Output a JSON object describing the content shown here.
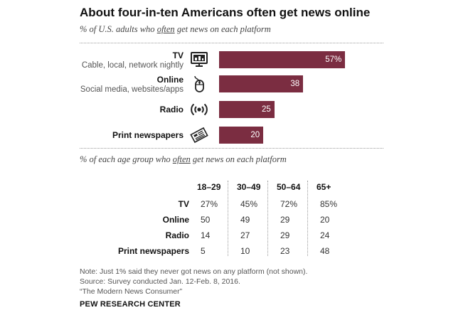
{
  "title": "About four-in-ten Americans often get news online",
  "subtitle1": {
    "pre": "% of U.S. adults who ",
    "emph": "often",
    "post": " get news on each platform"
  },
  "subtitle2": {
    "pre": "% of each age group who ",
    "emph": "often",
    "post": " get news on each platform"
  },
  "chart_data": [
    {
      "type": "bar",
      "orientation": "horizontal",
      "title": "About four-in-ten Americans often get news online",
      "categories": [
        "TV",
        "Online",
        "Radio",
        "Print newspapers"
      ],
      "category_descriptions": [
        "Cable, local, network nightly",
        "Social media, websites/apps",
        "",
        ""
      ],
      "category_icons": [
        "tv-icon",
        "computer-mouse-icon",
        "radio-icon",
        "newspaper-icon"
      ],
      "values": [
        57,
        38,
        25,
        20
      ],
      "value_labels": [
        "57%",
        "38",
        "25",
        "20"
      ],
      "xlim": [
        0,
        100
      ],
      "bar_color": "#7b2d41",
      "grid": false
    },
    {
      "type": "table",
      "columns": [
        "18–29",
        "30–49",
        "50–64",
        "65+"
      ],
      "rows": [
        {
          "label": "TV",
          "values": [
            "27%",
            "45%",
            "72%",
            "85%"
          ]
        },
        {
          "label": "Online",
          "values": [
            "50",
            "49",
            "29",
            "20"
          ]
        },
        {
          "label": "Radio",
          "values": [
            "14",
            "27",
            "29",
            "24"
          ]
        },
        {
          "label": "Print newspapers",
          "values": [
            "5",
            "10",
            "23",
            "48"
          ]
        }
      ]
    }
  ],
  "notes": [
    "Note: Just 1% said they never got news on any platform (not shown).",
    "Source: Survey conducted Jan. 12-Feb. 8, 2016.",
    "“The Modern News Consumer”"
  ],
  "brand": "PEW RESEARCH CENTER"
}
